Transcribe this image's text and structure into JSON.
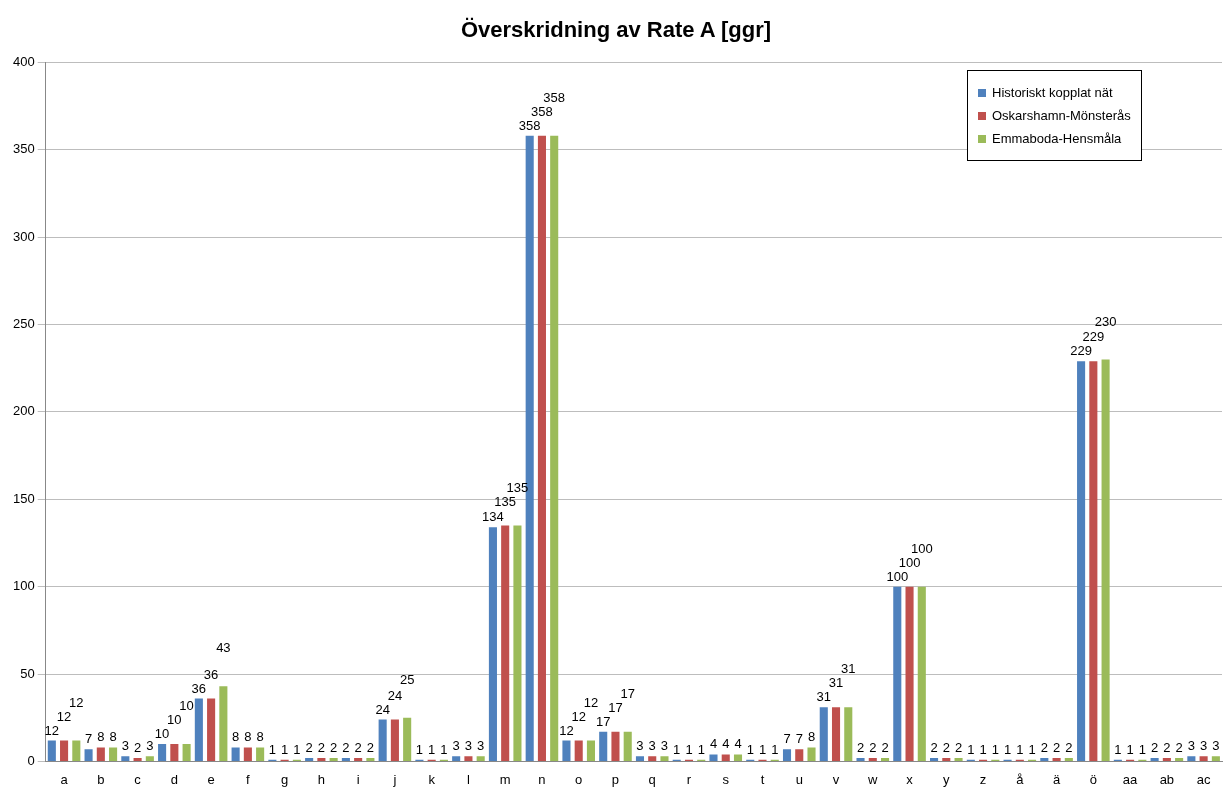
{
  "chart_data": {
    "type": "bar",
    "title": "Överskridning av Rate A [ggr]",
    "categories": [
      "a",
      "b",
      "c",
      "d",
      "e",
      "f",
      "g",
      "h",
      "i",
      "j",
      "k",
      "l",
      "m",
      "n",
      "o",
      "p",
      "q",
      "r",
      "s",
      "t",
      "u",
      "v",
      "w",
      "x",
      "y",
      "z",
      "å",
      "ä",
      "ö",
      "aa",
      "ab",
      "ac"
    ],
    "series": [
      {
        "name": "Historiskt kopplat nät",
        "color": "#4f81bd",
        "values": [
          12,
          7,
          3,
          10,
          36,
          8,
          1,
          2,
          2,
          24,
          1,
          3,
          134,
          358,
          12,
          17,
          3,
          1,
          4,
          1,
          7,
          31,
          2,
          100,
          2,
          1,
          1,
          2,
          229,
          1,
          2,
          3
        ]
      },
      {
        "name": "Oskarshamn-Mönsterås",
        "color": "#c0504d",
        "values": [
          12,
          8,
          2,
          10,
          36,
          8,
          1,
          2,
          2,
          24,
          1,
          3,
          135,
          358,
          12,
          17,
          3,
          1,
          4,
          1,
          7,
          31,
          2,
          100,
          2,
          1,
          1,
          2,
          229,
          1,
          2,
          3
        ]
      },
      {
        "name": "Emmaboda-Hensmåla",
        "color": "#9bbb59",
        "values": [
          12,
          8,
          3,
          10,
          43,
          8,
          1,
          2,
          2,
          25,
          1,
          3,
          135,
          358,
          12,
          17,
          3,
          1,
          4,
          1,
          8,
          31,
          2,
          100,
          2,
          1,
          1,
          2,
          230,
          1,
          2,
          3
        ]
      }
    ],
    "ylim": [
      0,
      400
    ],
    "yticks": [
      0,
      50,
      100,
      150,
      200,
      250,
      300,
      350,
      400
    ],
    "grid": "y",
    "legend": "top right",
    "data_labels": true
  }
}
